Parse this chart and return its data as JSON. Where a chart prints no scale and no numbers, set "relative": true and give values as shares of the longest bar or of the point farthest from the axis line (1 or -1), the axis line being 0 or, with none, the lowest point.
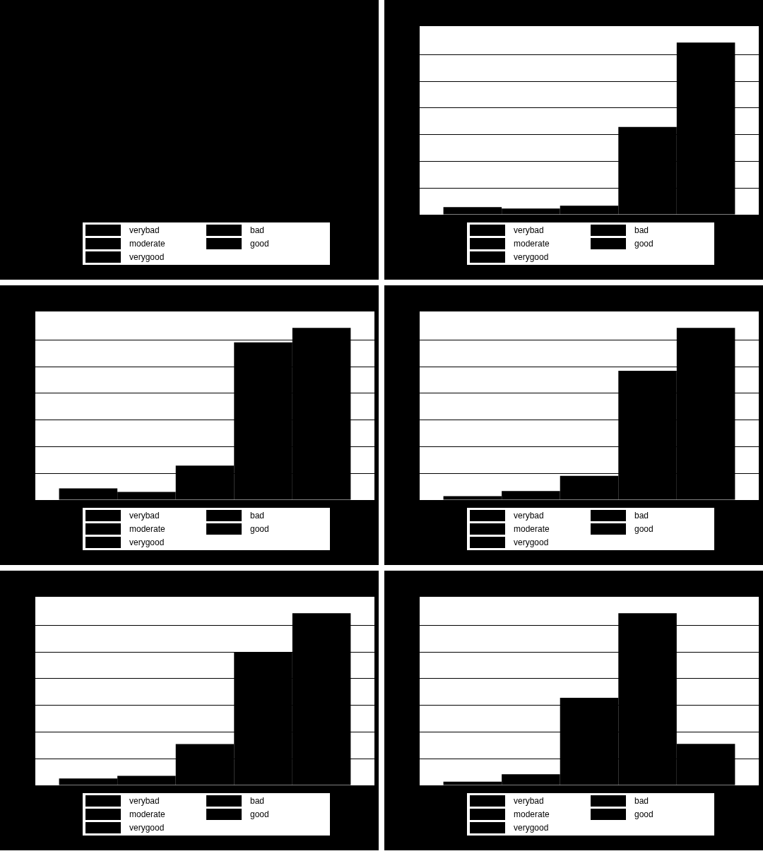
{
  "chart_data": [
    {
      "type": "other",
      "legend": "bottom",
      "series": [
        {
          "name": "verybad",
          "color": "#000000"
        },
        {
          "name": "bad",
          "color": "#000000"
        },
        {
          "name": "moderate",
          "color": "#000000"
        },
        {
          "name": "good",
          "color": "#000000"
        },
        {
          "name": "verygood",
          "color": "#000000"
        }
      ]
    },
    {
      "type": "bar",
      "relative": true,
      "categories": [
        null
      ],
      "grid": "y",
      "legend": "bottom",
      "series": [
        {
          "name": "verybad",
          "color": "#000000",
          "values": [
            0.044
          ]
        },
        {
          "name": "bad",
          "color": "#000000",
          "values": [
            0.036
          ]
        },
        {
          "name": "moderate",
          "color": "#000000",
          "values": [
            0.052
          ]
        },
        {
          "name": "good",
          "color": "#000000",
          "values": [
            0.51
          ]
        },
        {
          "name": "verygood",
          "color": "#000000",
          "values": [
            1
          ]
        }
      ]
    },
    {
      "type": "bar",
      "relative": true,
      "categories": [
        null
      ],
      "grid": "y",
      "legend": "bottom",
      "series": [
        {
          "name": "verybad",
          "color": "#000000",
          "values": [
            0.068
          ]
        },
        {
          "name": "bad",
          "color": "#000000",
          "values": [
            0.047
          ]
        },
        {
          "name": "moderate",
          "color": "#000000",
          "values": [
            0.2
          ]
        },
        {
          "name": "good",
          "color": "#000000",
          "values": [
            0.916
          ]
        },
        {
          "name": "verygood",
          "color": "#000000",
          "values": [
            1
          ]
        }
      ]
    },
    {
      "type": "bar",
      "relative": true,
      "categories": [
        null
      ],
      "grid": "y",
      "legend": "bottom",
      "series": [
        {
          "name": "verybad",
          "color": "#000000",
          "values": [
            0.023
          ]
        },
        {
          "name": "bad",
          "color": "#000000",
          "values": [
            0.052
          ]
        },
        {
          "name": "moderate",
          "color": "#000000",
          "values": [
            0.141
          ]
        },
        {
          "name": "good",
          "color": "#000000",
          "values": [
            0.751
          ]
        },
        {
          "name": "verygood",
          "color": "#000000",
          "values": [
            1
          ]
        }
      ]
    },
    {
      "type": "bar",
      "relative": true,
      "categories": [
        null
      ],
      "grid": "y",
      "legend": "bottom",
      "series": [
        {
          "name": "verybad",
          "color": "#000000",
          "values": [
            0.04
          ]
        },
        {
          "name": "bad",
          "color": "#000000",
          "values": [
            0.055
          ]
        },
        {
          "name": "moderate",
          "color": "#000000",
          "values": [
            0.24
          ]
        },
        {
          "name": "good",
          "color": "#000000",
          "values": [
            0.775
          ]
        },
        {
          "name": "verygood",
          "color": "#000000",
          "values": [
            1
          ]
        }
      ]
    },
    {
      "type": "bar",
      "relative": true,
      "categories": [
        null
      ],
      "grid": "y",
      "legend": "bottom",
      "series": [
        {
          "name": "verybad",
          "color": "#000000",
          "values": [
            0.022
          ]
        },
        {
          "name": "bad",
          "color": "#000000",
          "values": [
            0.065
          ]
        },
        {
          "name": "moderate",
          "color": "#000000",
          "values": [
            0.509
          ]
        },
        {
          "name": "good",
          "color": "#000000",
          "values": [
            1
          ]
        },
        {
          "name": "verygood",
          "color": "#000000",
          "values": [
            0.241
          ]
        }
      ]
    }
  ]
}
